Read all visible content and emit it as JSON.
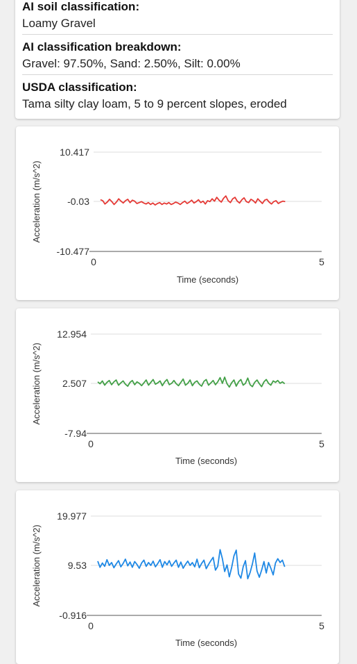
{
  "soil_info": {
    "ai_label": "AI soil classification:",
    "ai_value": "Loamy Gravel",
    "breakdown_label": "AI classification breakdown:",
    "breakdown_value": "Gravel: 97.50%, Sand: 2.50%, Silt: 0.00%",
    "usda_label": "USDA classification:",
    "usda_value": "Tama silty clay loam, 5 to 9 percent slopes, eroded"
  },
  "colors": {
    "x_series": "#e53935",
    "y_series": "#43a047",
    "z_series": "#1e88e5",
    "axis": "#555555",
    "grid": "#dcdcdc"
  },
  "chart_data": [
    {
      "type": "line",
      "xlabel": "Time (seconds)",
      "ylabel": "Acceleration (m/s^2)",
      "y_ticks": [
        "10.417",
        "-0.03",
        "-10.477"
      ],
      "x_ticks": [
        "0",
        "5"
      ],
      "xlim": [
        0,
        5
      ],
      "ylim": [
        -10.477,
        10.417
      ],
      "color": "#e53935",
      "x": [
        0.15,
        0.2,
        0.25,
        0.3,
        0.35,
        0.4,
        0.45,
        0.5,
        0.55,
        0.6,
        0.65,
        0.7,
        0.75,
        0.8,
        0.85,
        0.9,
        0.95,
        1.0,
        1.05,
        1.1,
        1.15,
        1.2,
        1.25,
        1.3,
        1.35,
        1.4,
        1.45,
        1.5,
        1.55,
        1.6,
        1.65,
        1.7,
        1.75,
        1.8,
        1.85,
        1.9,
        1.95,
        2.0,
        2.05,
        2.1,
        2.15,
        2.2,
        2.25,
        2.3,
        2.35,
        2.4,
        2.45,
        2.5,
        2.55,
        2.6,
        2.65,
        2.7,
        2.75,
        2.8,
        2.85,
        2.9,
        2.95,
        3.0,
        3.05,
        3.1,
        3.15,
        3.2,
        3.25,
        3.3,
        3.35,
        3.4,
        3.45,
        3.5,
        3.55,
        3.6,
        3.65,
        3.7,
        3.75,
        3.8,
        3.85,
        3.9,
        3.95,
        4.0,
        4.05,
        4.1,
        4.15,
        4.2
      ],
      "values": [
        0.4,
        0.2,
        -0.5,
        -0.1,
        0.5,
        0.0,
        -0.6,
        -0.1,
        0.6,
        0.1,
        -0.3,
        0.2,
        0.5,
        -0.2,
        0.3,
        0.1,
        -0.4,
        -0.2,
        0.0,
        -0.3,
        -0.5,
        -0.2,
        -0.6,
        -0.3,
        -0.7,
        -0.4,
        -0.2,
        -0.6,
        -0.3,
        -0.5,
        -0.2,
        -0.6,
        -0.4,
        -0.1,
        -0.3,
        -0.6,
        -0.2,
        0.1,
        -0.4,
        -0.1,
        0.3,
        -0.3,
        0.0,
        0.4,
        -0.2,
        0.1,
        -0.5,
        0.2,
        0.0,
        0.6,
        0.1,
        0.9,
        0.3,
        -0.1,
        0.7,
        1.2,
        0.2,
        -0.2,
        0.6,
        0.9,
        0.1,
        -0.3,
        0.4,
        0.8,
        0.0,
        -0.2,
        0.5,
        0.2,
        -0.3,
        0.6,
        0.1,
        -0.4,
        0.3,
        0.5,
        -0.1,
        -0.5,
        0.0,
        0.2,
        -0.4,
        -0.1,
        0.1,
        0.0
      ]
    },
    {
      "type": "line",
      "xlabel": "Time (seconds)",
      "ylabel": "Acceleration (m/s^2)",
      "y_ticks": [
        "12.954",
        "2.507",
        "-7.94"
      ],
      "x_ticks": [
        "0",
        "5"
      ],
      "xlim": [
        0,
        5
      ],
      "ylim": [
        -7.94,
        12.954
      ],
      "color": "#43a047",
      "x": [
        0.15,
        0.2,
        0.25,
        0.3,
        0.35,
        0.4,
        0.45,
        0.5,
        0.55,
        0.6,
        0.65,
        0.7,
        0.75,
        0.8,
        0.85,
        0.9,
        0.95,
        1.0,
        1.05,
        1.1,
        1.15,
        1.2,
        1.25,
        1.3,
        1.35,
        1.4,
        1.45,
        1.5,
        1.55,
        1.6,
        1.65,
        1.7,
        1.75,
        1.8,
        1.85,
        1.9,
        1.95,
        2.0,
        2.05,
        2.1,
        2.15,
        2.2,
        2.25,
        2.3,
        2.35,
        2.4,
        2.45,
        2.5,
        2.55,
        2.6,
        2.65,
        2.7,
        2.75,
        2.8,
        2.85,
        2.9,
        2.95,
        3.0,
        3.05,
        3.1,
        3.15,
        3.2,
        3.25,
        3.3,
        3.35,
        3.4,
        3.45,
        3.5,
        3.55,
        3.6,
        3.65,
        3.7,
        3.75,
        3.8,
        3.85,
        3.9,
        3.95,
        4.0,
        4.05,
        4.1,
        4.15,
        4.2
      ],
      "values": [
        2.9,
        2.5,
        3.1,
        2.2,
        2.8,
        3.2,
        2.3,
        2.9,
        3.3,
        2.2,
        2.7,
        3.1,
        2.4,
        2.0,
        2.8,
        3.2,
        2.3,
        2.9,
        2.6,
        2.1,
        2.7,
        3.3,
        2.2,
        2.8,
        3.4,
        2.4,
        2.7,
        3.1,
        2.1,
        2.9,
        3.4,
        2.3,
        2.6,
        3.2,
        2.5,
        2.1,
        2.8,
        3.5,
        2.2,
        2.6,
        3.3,
        2.1,
        2.8,
        3.1,
        2.4,
        2.0,
        3.0,
        3.4,
        2.2,
        2.7,
        3.2,
        2.3,
        2.9,
        3.8,
        2.6,
        3.9,
        2.5,
        1.8,
        2.7,
        3.3,
        2.0,
        2.9,
        3.4,
        2.2,
        2.6,
        3.7,
        2.3,
        1.9,
        2.8,
        3.3,
        2.5,
        1.9,
        2.9,
        3.4,
        2.6,
        2.2,
        3.1,
        2.8,
        3.2,
        2.6,
        2.9,
        2.5
      ]
    },
    {
      "type": "line",
      "xlabel": "Time (seconds)",
      "ylabel": "Acceleration (m/s^2)",
      "y_ticks": [
        "19.977",
        "9.53",
        "-0.916"
      ],
      "x_ticks": [
        "0",
        "5"
      ],
      "xlim": [
        0,
        5
      ],
      "ylim": [
        -0.916,
        19.977
      ],
      "color": "#1e88e5",
      "x": [
        0.15,
        0.2,
        0.25,
        0.3,
        0.35,
        0.4,
        0.45,
        0.5,
        0.55,
        0.6,
        0.65,
        0.7,
        0.75,
        0.8,
        0.85,
        0.9,
        0.95,
        1.0,
        1.05,
        1.1,
        1.15,
        1.2,
        1.25,
        1.3,
        1.35,
        1.4,
        1.45,
        1.5,
        1.55,
        1.6,
        1.65,
        1.7,
        1.75,
        1.8,
        1.85,
        1.9,
        1.95,
        2.0,
        2.05,
        2.1,
        2.15,
        2.2,
        2.25,
        2.3,
        2.35,
        2.4,
        2.45,
        2.5,
        2.55,
        2.6,
        2.65,
        2.7,
        2.75,
        2.8,
        2.85,
        2.9,
        2.95,
        3.0,
        3.05,
        3.1,
        3.15,
        3.2,
        3.25,
        3.3,
        3.35,
        3.4,
        3.45,
        3.5,
        3.55,
        3.6,
        3.65,
        3.7,
        3.75,
        3.8,
        3.85,
        3.9,
        3.95,
        4.0,
        4.05,
        4.1,
        4.15,
        4.2
      ],
      "values": [
        10.5,
        9.2,
        10.1,
        9.4,
        10.8,
        9.6,
        10.2,
        9.1,
        9.9,
        10.6,
        9.3,
        10.0,
        10.9,
        9.5,
        10.3,
        9.2,
        10.4,
        9.8,
        9.0,
        10.1,
        10.7,
        9.4,
        10.2,
        9.6,
        10.5,
        9.3,
        10.0,
        10.8,
        9.2,
        10.4,
        9.7,
        10.6,
        9.4,
        10.1,
        10.7,
        9.2,
        10.3,
        9.0,
        9.8,
        10.5,
        9.6,
        10.2,
        9.3,
        10.9,
        9.1,
        10.0,
        10.7,
        8.9,
        9.8,
        10.6,
        11.3,
        8.6,
        9.4,
        12.9,
        11.0,
        8.3,
        9.7,
        7.2,
        9.1,
        11.6,
        12.8,
        7.8,
        6.9,
        9.3,
        10.6,
        6.8,
        8.1,
        9.9,
        12.2,
        8.4,
        7.1,
        8.6,
        10.4,
        8.0,
        10.2,
        9.0,
        7.6,
        10.1,
        11.0,
        10.2,
        10.7,
        9.3
      ]
    }
  ]
}
